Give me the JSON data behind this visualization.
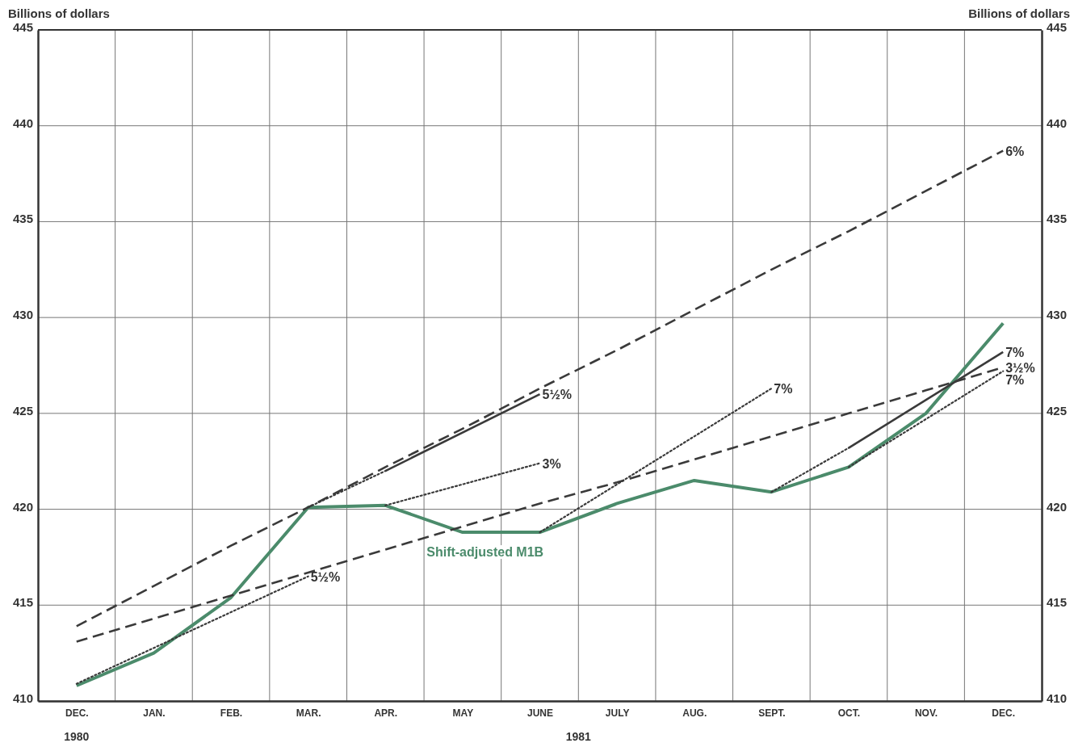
{
  "chart_data": {
    "type": "line",
    "ylabel": "Billions of dollars",
    "y2label": "Billions of dollars",
    "categories": [
      "DEC.",
      "JAN.",
      "FEB.",
      "MAR.",
      "APR.",
      "MAY",
      "JUNE",
      "JULY",
      "AUG.",
      "SEPT.",
      "OCT.",
      "NOV.",
      "DEC."
    ],
    "ylim": [
      410,
      445
    ],
    "yticks": [
      410,
      415,
      420,
      425,
      430,
      435,
      440,
      445
    ],
    "y2lim": [
      410,
      445
    ],
    "y2ticks": [
      410,
      415,
      420,
      425,
      430,
      435,
      440,
      445
    ],
    "grid": true,
    "annotations": [
      "1980",
      "1981"
    ],
    "series": [
      {
        "name": "Shift-adjusted M1B",
        "color": "#4b8b6b",
        "line_style": "solid",
        "values": [
          410.8,
          412.5,
          415.4,
          420.1,
          420.2,
          418.8,
          418.8,
          420.3,
          421.5,
          420.9,
          422.2,
          425.0,
          429.7
        ]
      },
      {
        "name": "6%",
        "color": "#3a3a3a",
        "line_style": "dashed",
        "values": [
          413.9,
          416.0,
          418.1,
          420.1,
          422.2,
          424.2,
          426.3,
          428.3,
          430.4,
          432.5,
          434.5,
          436.6,
          438.7
        ]
      },
      {
        "name": "3½%",
        "color": "#3a3a3a",
        "line_style": "dashed",
        "values": [
          413.1,
          414.3,
          415.5,
          416.7,
          417.9,
          419.1,
          420.3,
          421.4,
          422.6,
          423.8,
          425.0,
          426.2,
          427.4
        ]
      },
      {
        "name": "5½%",
        "color": "#3a3a3a",
        "line_style": "dotted",
        "values": [
          410.9,
          null,
          null,
          416.5,
          null,
          null,
          null,
          null,
          null,
          null,
          null,
          null,
          null
        ]
      },
      {
        "color": "#3a3a3a",
        "line_style": "dotted",
        "values": [
          null,
          null,
          null,
          420.1,
          422.0,
          null,
          null,
          null,
          null,
          null,
          null,
          null,
          null
        ]
      },
      {
        "name": "5½%",
        "color": "#3a3a3a",
        "line_style": "solid",
        "values": [
          null,
          null,
          null,
          null,
          422.0,
          null,
          426.0,
          null,
          null,
          null,
          null,
          null,
          null
        ]
      },
      {
        "name": "3%",
        "color": "#3a3a3a",
        "line_style": "dotted",
        "values": [
          null,
          null,
          null,
          null,
          420.2,
          null,
          422.4,
          null,
          null,
          null,
          null,
          null,
          null
        ]
      },
      {
        "name": "7%",
        "color": "#3a3a3a",
        "line_style": "dotted",
        "values": [
          null,
          null,
          null,
          null,
          null,
          null,
          418.8,
          null,
          null,
          426.3,
          null,
          null,
          null
        ]
      },
      {
        "color": "#3a3a3a",
        "line_style": "dotted",
        "values": [
          null,
          null,
          null,
          null,
          null,
          null,
          null,
          null,
          null,
          420.9,
          423.2,
          null,
          null
        ]
      },
      {
        "name": "7%",
        "color": "#3a3a3a",
        "line_style": "solid",
        "values": [
          null,
          null,
          null,
          null,
          null,
          null,
          null,
          null,
          null,
          null,
          423.2,
          null,
          428.2
        ]
      },
      {
        "name": "7%",
        "color": "#3a3a3a",
        "line_style": "dotted",
        "values": [
          null,
          null,
          null,
          null,
          null,
          null,
          null,
          null,
          null,
          null,
          422.2,
          null,
          427.2
        ]
      }
    ]
  }
}
